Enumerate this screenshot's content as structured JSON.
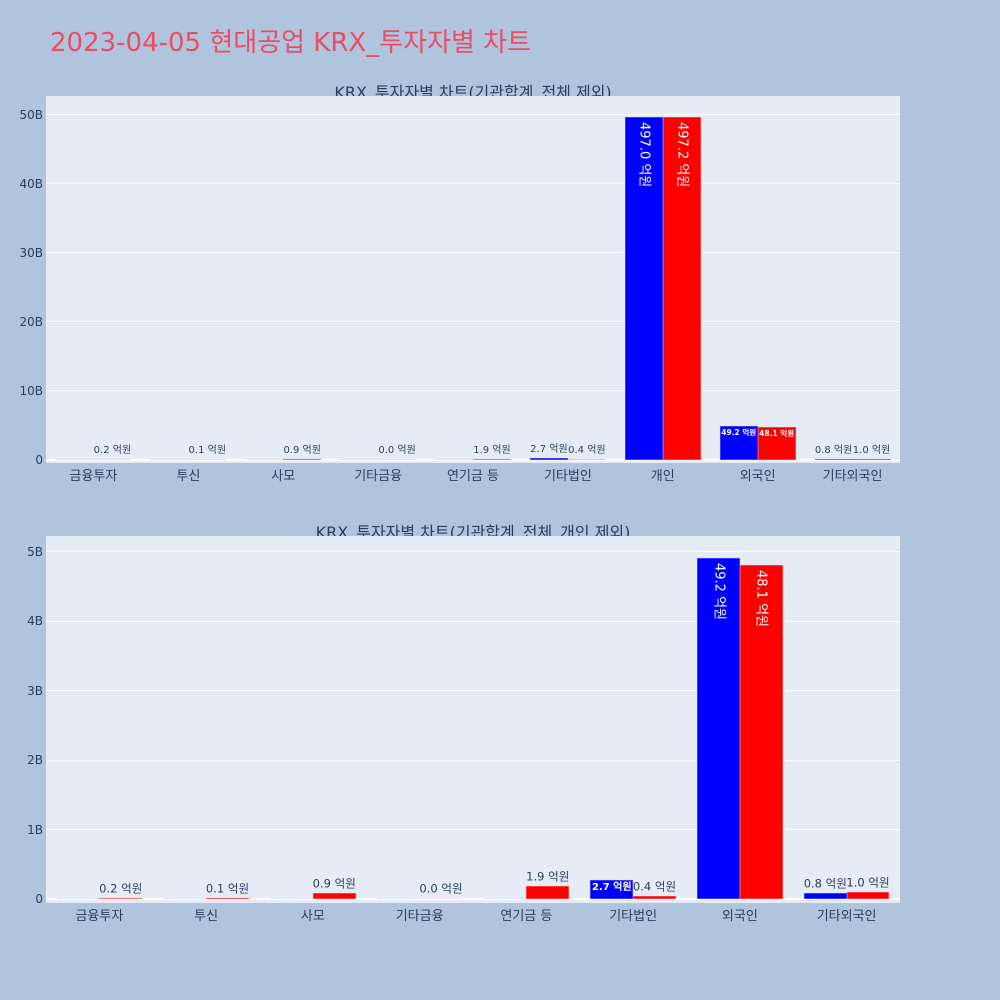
{
  "page": {
    "title": "2023-04-05 현대공업 KRX_투자자별 차트",
    "background": "#B0C4DE",
    "title_color": "#EB4D62"
  },
  "charts": [
    {
      "title": "KRX_투자자별 차트(기관합계_전체 제외)"
    },
    {
      "title": "KRX_투자자별 차트(기관합계_전체_개인 제외)"
    }
  ],
  "chart_data": [
    {
      "type": "bar",
      "title": "KRX_투자자별 차트(기관합계_전체 제외)",
      "xlabel": "",
      "ylabel": "",
      "unit": "억원",
      "categories": [
        "금융투자",
        "투신",
        "사모",
        "기타금융",
        "연기금 등",
        "기타법인",
        "개인",
        "외국인",
        "기타외국인"
      ],
      "series": [
        {
          "color": "#0000FF",
          "values": [
            0,
            0,
            0,
            0,
            0,
            2.7,
            497.0,
            49.2,
            0.8
          ],
          "text": [
            "",
            "",
            "",
            "",
            "",
            "2.7 억원",
            "497.0 억원",
            "49.2 억원",
            "0.8 억원"
          ],
          "text_position": [
            "none",
            "none",
            "none",
            "none",
            "none",
            "outside",
            "inside-rotated",
            "inside",
            "outside"
          ]
        },
        {
          "color": "#FF0000",
          "values": [
            0.2,
            0.1,
            0.9,
            0.0,
            1.9,
            0.4,
            497.2,
            48.1,
            1.0
          ],
          "text": [
            "0.2 억원",
            "0.1 억원",
            "0.9 억원",
            "0.0 억원",
            "1.9 억원",
            "0.4 억원",
            "497.2 억원",
            "48.1 억원",
            "1.0 억원"
          ],
          "text_position": [
            "outside",
            "outside",
            "outside",
            "outside",
            "outside",
            "outside",
            "inside-rotated",
            "inside",
            "outside"
          ]
        }
      ],
      "yticks": [
        0,
        100,
        200,
        300,
        400,
        500
      ],
      "ytick_labels": [
        "0",
        "10B",
        "20B",
        "30B",
        "40B",
        "50B"
      ],
      "ylim": [
        -4.35,
        527.5
      ],
      "grid": true,
      "legend": false
    },
    {
      "type": "bar",
      "title": "KRX_투자자별 차트(기관합계_전체_개인 제외)",
      "xlabel": "",
      "ylabel": "",
      "unit": "억원",
      "categories": [
        "금융투자",
        "투신",
        "사모",
        "기타금융",
        "연기금 등",
        "기타법인",
        "외국인",
        "기타외국인"
      ],
      "series": [
        {
          "color": "#0000FF",
          "values": [
            0,
            0,
            0,
            0,
            0,
            2.7,
            49.2,
            0.8
          ],
          "text": [
            "",
            "",
            "",
            "",
            "",
            "2.7 억원",
            "49.2 억원",
            "0.8 억원"
          ],
          "text_position": [
            "none",
            "none",
            "none",
            "none",
            "none",
            "inside",
            "inside-rotated",
            "outside"
          ]
        },
        {
          "color": "#FF0000",
          "values": [
            0.2,
            0.1,
            0.9,
            0.0,
            1.9,
            0.4,
            48.1,
            1.0
          ],
          "text": [
            "0.2 억원",
            "0.1 억원",
            "0.9 억원",
            "0.0 억원",
            "1.9 억원",
            "0.4 억원",
            "48.1 억원",
            "1.0 억원"
          ],
          "text_position": [
            "outside",
            "outside",
            "outside",
            "outside",
            "outside",
            "outside",
            "inside-rotated",
            "outside"
          ]
        }
      ],
      "yticks": [
        0,
        10,
        20,
        30,
        40,
        50
      ],
      "ytick_labels": [
        "0",
        "1B",
        "2B",
        "3B",
        "4B",
        "5B"
      ],
      "ylim": [
        -0.58,
        52.3
      ],
      "grid": true,
      "legend": false
    }
  ]
}
